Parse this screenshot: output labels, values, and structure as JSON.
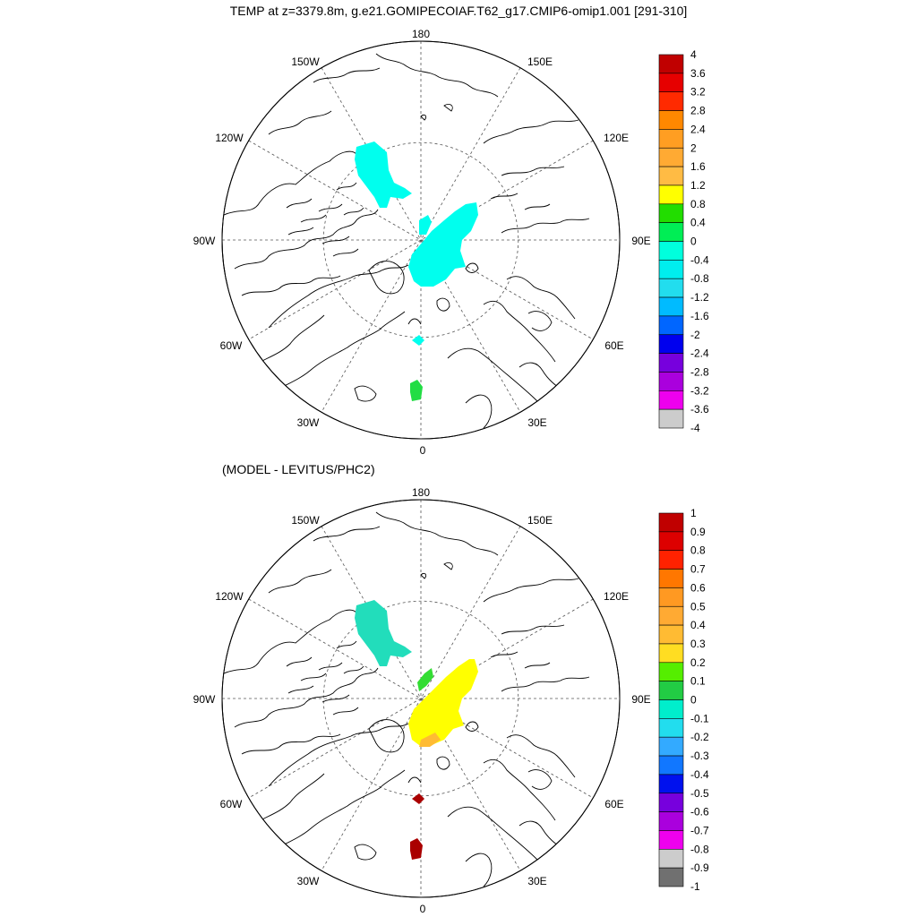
{
  "title": "TEMP at z=3379.8m, g.e21.GOMIPECOIAF.T62_g17.CMIP6-omip1.001 [291-310]",
  "subtitle": "(MODEL - LEVITUS/PHC2)",
  "meridian_labels": {
    "m180": "180",
    "m0": "0",
    "m150w": "150W",
    "m120w": "120W",
    "m90w": "90W",
    "m60w": "60W",
    "m30w": "30W",
    "m150e": "150E",
    "m120e": "120E",
    "m90e": "90E",
    "m60e": "60E",
    "m30e": "30E"
  },
  "colorbar_top": {
    "labels": [
      "4",
      "3.6",
      "3.2",
      "2.8",
      "2.4",
      "2",
      "1.6",
      "1.2",
      "0.8",
      "0.4",
      "0",
      "-0.4",
      "-0.8",
      "-1.2",
      "-1.6",
      "-2",
      "-2.4",
      "-2.8",
      "-3.2",
      "-3.6",
      "-4"
    ],
    "colors": [
      "#c00000",
      "#e60000",
      "#ff2a00",
      "#ff8800",
      "#ff9e22",
      "#ffaa33",
      "#ffbb44",
      "#ffff00",
      "#22dd00",
      "#00ee55",
      "#00ffdd",
      "#00eeee",
      "#22ddee",
      "#00bbff",
      "#0066ff",
      "#0000ee",
      "#7700dd",
      "#aa00dd",
      "#ee00ee",
      "#cccccc"
    ],
    "last_color": "#707070"
  },
  "colorbar_bottom": {
    "labels": [
      "1",
      "0.9",
      "0.8",
      "0.7",
      "0.6",
      "0.5",
      "0.4",
      "0.3",
      "0.2",
      "0.1",
      "0",
      "-0.1",
      "-0.2",
      "-0.3",
      "-0.4",
      "-0.5",
      "-0.6",
      "-0.7",
      "-0.8",
      "-0.9",
      "-1"
    ],
    "colors": [
      "#c00000",
      "#dd0000",
      "#ff2200",
      "#ff7700",
      "#ff9922",
      "#ffaa33",
      "#ffbb33",
      "#ffdd22",
      "#55ee00",
      "#22cc44",
      "#00eecc",
      "#22ddee",
      "#33aaff",
      "#1177ff",
      "#0011ee",
      "#7700dd",
      "#aa00dd",
      "#ee00ee",
      "#cccccc",
      "#707070"
    ],
    "last_color": "#707070"
  },
  "colors": {
    "top_cyan": "#00ffee",
    "top_green": "#22dd44",
    "bot_teal": "#22ddbb",
    "bot_yellow": "#ffff00",
    "bot_green": "#33dd33",
    "bot_orange": "#ffbb33",
    "bot_darkred": "#aa0000"
  }
}
